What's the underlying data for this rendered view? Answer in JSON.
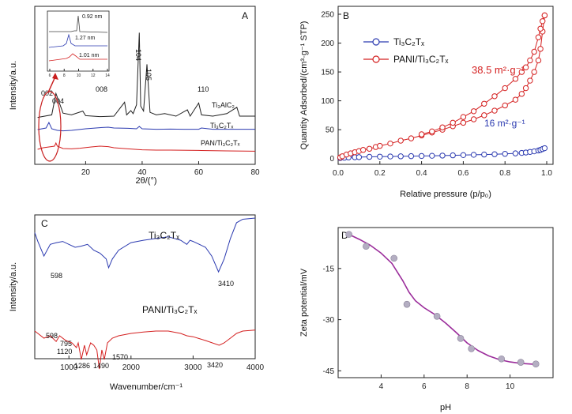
{
  "chart_data": [
    {
      "panel": "A",
      "type": "line",
      "xlabel": "2θ/(°)",
      "ylabel": "Intensity/a.u.",
      "xlim": [
        2,
        80
      ],
      "xticks": [
        20,
        40,
        60,
        80
      ],
      "series": [
        {
          "name": "Ti3AlC2",
          "label_text": "Ti₃AlC₂",
          "color": "#222222",
          "x": [
            3,
            8,
            9.5,
            12,
            15,
            19,
            20,
            25,
            30,
            33.8,
            34.5,
            36,
            36.8,
            38,
            39,
            39.5,
            40.5,
            41.7,
            42.8,
            45,
            48,
            52,
            56,
            57,
            60,
            61,
            65,
            70,
            73.5,
            74.5,
            78,
            80
          ],
          "y": [
            0.95,
            1.05,
            1.9,
            1.12,
            1.05,
            1.2,
            1.02,
            0.98,
            1.0,
            1.55,
            1.05,
            1.22,
            1.1,
            1.45,
            4.3,
            1.4,
            1.2,
            3.05,
            1.15,
            1.05,
            1.1,
            1.0,
            1.25,
            1.0,
            1.52,
            1.05,
            1.0,
            1.1,
            1.35,
            1.0,
            1.0,
            1.0
          ]
        },
        {
          "name": "Ti3C2Tx",
          "label_text": "Ti₃C₂Tₓ",
          "color": "#2b3ab0",
          "x": [
            3,
            6,
            7,
            8,
            10,
            12,
            15,
            20,
            25,
            28,
            30,
            35,
            38,
            39,
            40,
            45,
            50,
            55,
            60,
            61,
            65,
            70,
            75,
            80
          ],
          "y": [
            0.4,
            0.5,
            0.85,
            0.45,
            0.35,
            0.32,
            0.35,
            0.45,
            0.52,
            0.55,
            0.5,
            0.48,
            0.45,
            0.6,
            0.45,
            0.42,
            0.43,
            0.42,
            0.42,
            0.5,
            0.42,
            0.42,
            0.42,
            0.42
          ]
        },
        {
          "name": "PAN/Ti3C2Tx",
          "label_text": "PAN/Ti₃C₂Tₓ",
          "color": "#d42020",
          "x": [
            3,
            5,
            7,
            9,
            9.5,
            10,
            12,
            15,
            18,
            22,
            25,
            28,
            30,
            35,
            40,
            45,
            50,
            60,
            70,
            80
          ],
          "y": [
            0.15,
            0.25,
            0.3,
            0.35,
            0.55,
            0.35,
            0.2,
            0.18,
            0.22,
            0.3,
            0.35,
            0.32,
            0.25,
            0.18,
            0.12,
            0.1,
            0.1,
            0.08,
            0.05,
            0.03
          ]
        }
      ],
      "annotations": [
        "002",
        "004",
        "008",
        "104",
        "105",
        "110"
      ],
      "inset_labels": [
        "0.92 nm",
        "1.27 nm",
        "1.01 nm"
      ],
      "inset_xlim": [
        6,
        14
      ],
      "inset_xticks": [
        6,
        8,
        10,
        12,
        14
      ]
    },
    {
      "panel": "B",
      "type": "line",
      "xlabel": "Relative pressure (p/p₀)",
      "ylabel": "Quantity Adsorbed/(cm³·g⁻¹ STP)",
      "xlim": [
        0,
        1.0
      ],
      "ylim": [
        -10,
        250
      ],
      "xticks": [
        0.0,
        0.2,
        0.4,
        0.6,
        0.8,
        1.0
      ],
      "yticks": [
        0,
        50,
        100,
        150,
        200,
        250
      ],
      "legend_position": "top-left",
      "series": [
        {
          "name": "Ti3C2Tx",
          "label_text": "Ti₃C₂Tₓ",
          "color": "#2b3ab0",
          "x": [
            0.01,
            0.03,
            0.05,
            0.08,
            0.1,
            0.15,
            0.2,
            0.25,
            0.3,
            0.35,
            0.4,
            0.45,
            0.5,
            0.55,
            0.6,
            0.65,
            0.7,
            0.75,
            0.8,
            0.85,
            0.88,
            0.9,
            0.92,
            0.94,
            0.96,
            0.97,
            0.98,
            0.99
          ],
          "y": [
            1,
            1.5,
            2,
            2.3,
            2.5,
            3,
            3.3,
            3.6,
            3.9,
            4.2,
            4.5,
            4.8,
            5.2,
            5.6,
            6,
            6.5,
            7,
            7.5,
            8.2,
            9,
            9.8,
            10.5,
            11.5,
            12.5,
            14,
            15,
            16.5,
            18
          ]
        },
        {
          "name": "PANI/Ti3C2Tx",
          "label_text": "PANI/Ti₃C₂Tₓ",
          "color": "#d42020",
          "x": [
            0.01,
            0.02,
            0.04,
            0.06,
            0.08,
            0.1,
            0.12,
            0.15,
            0.18,
            0.2,
            0.25,
            0.3,
            0.35,
            0.4,
            0.45,
            0.5,
            0.55,
            0.6,
            0.65,
            0.7,
            0.75,
            0.8,
            0.85,
            0.88,
            0.9,
            0.92,
            0.94,
            0.96,
            0.97,
            0.98,
            0.99
          ],
          "y": [
            2,
            4,
            7,
            9,
            11,
            13,
            15,
            17,
            20,
            22,
            26,
            31,
            35,
            40,
            45,
            50,
            56,
            62,
            68,
            75,
            83,
            92,
            102,
            112,
            122,
            135,
            150,
            170,
            190,
            220,
            248
          ]
        },
        {
          "name": "PANI/Ti3C2Tx (desorption)",
          "color": "#d42020",
          "x": [
            0.99,
            0.98,
            0.97,
            0.96,
            0.94,
            0.92,
            0.9,
            0.88,
            0.85,
            0.8,
            0.75,
            0.7,
            0.65,
            0.6,
            0.55,
            0.5,
            0.45,
            0.4
          ],
          "y": [
            248,
            238,
            225,
            210,
            185,
            170,
            158,
            150,
            138,
            122,
            108,
            95,
            82,
            72,
            62,
            54,
            47,
            42
          ]
        }
      ],
      "annotations": [
        "38.5 m²·g⁻¹",
        "16 m²·g⁻¹"
      ]
    },
    {
      "panel": "C",
      "type": "line",
      "xlabel": "Wavenumber/cm⁻¹",
      "ylabel": "Intensity/a.u.",
      "xlim": [
        450,
        4000
      ],
      "xticks": [
        1000,
        2000,
        3000,
        4000
      ],
      "series": [
        {
          "name": "Ti3C2Tx",
          "label_text": "Ti₃C₂Tₓ",
          "color": "#2b3ab0",
          "x": [
            450,
            500,
            598,
            700,
            800,
            900,
            1000,
            1100,
            1200,
            1300,
            1400,
            1500,
            1600,
            1640,
            1700,
            1800,
            2000,
            2200,
            2400,
            2600,
            2800,
            2900,
            2950,
            3000,
            3200,
            3300,
            3410,
            3500,
            3600,
            3700,
            3800,
            4000
          ],
          "y": [
            0.75,
            0.6,
            0.35,
            0.55,
            0.58,
            0.6,
            0.55,
            0.5,
            0.52,
            0.55,
            0.45,
            0.4,
            0.3,
            0.15,
            0.3,
            0.45,
            0.58,
            0.62,
            0.65,
            0.68,
            0.62,
            0.55,
            0.62,
            0.6,
            0.5,
            0.35,
            0.08,
            0.3,
            0.65,
            0.92,
            0.98,
            1.0
          ]
        },
        {
          "name": "PANI/Ti3C2Tx",
          "label_text": "PANI/Ti₃C₂Tₓ",
          "color": "#d42020",
          "x": [
            450,
            500,
            598,
            700,
            795,
            850,
            950,
            1050,
            1120,
            1150,
            1200,
            1250,
            1286,
            1350,
            1400,
            1450,
            1490,
            1530,
            1570,
            1620,
            1700,
            1800,
            2000,
            2200,
            2400,
            2600,
            2800,
            2900,
            3000,
            3200,
            3420,
            3500,
            3600,
            3700,
            3800,
            4000
          ],
          "y": [
            0.6,
            0.55,
            0.45,
            0.5,
            0.38,
            0.5,
            0.4,
            0.35,
            0.25,
            0.35,
            0.0,
            0.3,
            0.1,
            0.35,
            0.3,
            0.2,
            -0.2,
            0.2,
            0.0,
            0.35,
            0.45,
            0.5,
            0.55,
            0.58,
            0.6,
            0.6,
            0.55,
            0.5,
            0.48,
            0.4,
            0.3,
            0.35,
            0.45,
            0.55,
            0.6,
            0.62
          ]
        }
      ],
      "annotations": [
        "598",
        "3410",
        "598",
        "795",
        "1120",
        "1286",
        "1490",
        "1570",
        "3420"
      ]
    },
    {
      "panel": "D",
      "type": "scatter",
      "xlabel": "pH",
      "ylabel": "Zeta potential/mV",
      "xlim": [
        2,
        12
      ],
      "ylim": [
        -47,
        -3
      ],
      "xticks": [
        4,
        6,
        8,
        10
      ],
      "yticks": [
        -15,
        -30,
        -45
      ],
      "series": [
        {
          "name": "points",
          "color": "#9a8fa8",
          "x": [
            2.5,
            3.3,
            4.6,
            5.2,
            6.6,
            7.7,
            8.2,
            9.6,
            10.5,
            11.2
          ],
          "y": [
            -5,
            -8.5,
            -12,
            -25.5,
            -29,
            -35.5,
            -38.5,
            -41.5,
            -42.5,
            -43
          ]
        },
        {
          "name": "fit",
          "color": "#9b2d9b",
          "x": [
            2.5,
            3.0,
            3.5,
            4.0,
            4.5,
            5.0,
            5.3,
            5.6,
            6.0,
            6.5,
            7.0,
            7.5,
            8.0,
            8.5,
            9.0,
            9.5,
            10.0,
            10.5,
            11.2
          ],
          "y": [
            -5,
            -6.5,
            -8.2,
            -10.5,
            -13.5,
            -18.5,
            -22,
            -24.5,
            -26.5,
            -28.5,
            -31,
            -33.8,
            -36.8,
            -39,
            -40.6,
            -41.7,
            -42.4,
            -42.8,
            -43.1
          ]
        }
      ]
    }
  ]
}
